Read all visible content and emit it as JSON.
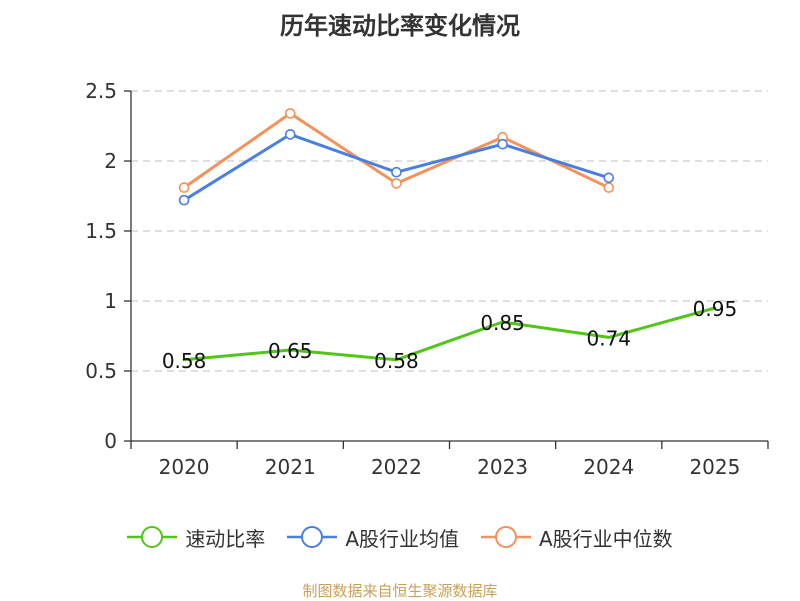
{
  "chart_data": {
    "type": "line",
    "title": "历年速动比率变化情况",
    "categories": [
      "2020",
      "2021",
      "2022",
      "2023",
      "2024",
      "2025"
    ],
    "yticks": [
      "0",
      "0.5",
      "1",
      "1.5",
      "2",
      "2.5"
    ],
    "ylim": [
      0,
      2.5
    ],
    "grid": true,
    "legend_position": "bottom",
    "series": [
      {
        "name": "速动比率",
        "color": "#52c41a",
        "values": [
          0.58,
          0.65,
          0.58,
          0.85,
          0.74,
          0.95
        ],
        "labels": [
          "0.58",
          "0.65",
          "0.58",
          "0.85",
          "0.74",
          "0.95"
        ]
      },
      {
        "name": "A股行业均值",
        "color": "#4a7fe0",
        "values": [
          1.72,
          2.19,
          1.92,
          2.12,
          1.88,
          null
        ]
      },
      {
        "name": "A股行业中位数",
        "color": "#f5925a",
        "values": [
          1.81,
          2.34,
          1.84,
          2.17,
          1.81,
          null
        ]
      }
    ]
  },
  "source_note": "制图数据来自恒生聚源数据库"
}
